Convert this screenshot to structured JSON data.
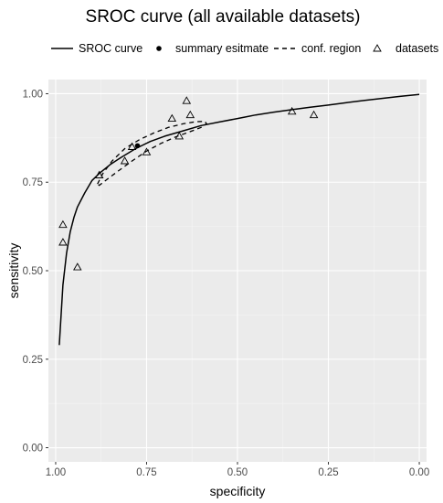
{
  "chart_data": {
    "type": "scatter",
    "title": "SROC curve (all available datasets)",
    "xlabel": "specificity",
    "ylabel": "sensitivity",
    "x_reversed": true,
    "xlim": [
      1.02,
      -0.02
    ],
    "ylim": [
      -0.04,
      1.04
    ],
    "x_ticks": [
      1.0,
      0.75,
      0.5,
      0.25,
      0.0
    ],
    "x_tick_labels": [
      "1.00",
      "0.75",
      "0.50",
      "0.25",
      "0.00"
    ],
    "y_ticks": [
      0.0,
      0.25,
      0.5,
      0.75,
      1.0
    ],
    "y_tick_labels": [
      "0.00",
      "0.25",
      "0.50",
      "0.75",
      "1.00"
    ],
    "grid": true,
    "background": "#ebebeb",
    "legend_position": "top",
    "legend": [
      {
        "label": "SROC curve",
        "key": "solid-line"
      },
      {
        "label": "summary esitmate",
        "key": "filled-circle"
      },
      {
        "label": "conf. region",
        "key": "dashed-line"
      },
      {
        "label": "datasets",
        "key": "open-triangle"
      }
    ],
    "sroc_curve": {
      "specificity": [
        0.99,
        0.98,
        0.97,
        0.96,
        0.95,
        0.94,
        0.92,
        0.9,
        0.88,
        0.85,
        0.82,
        0.78,
        0.74,
        0.7,
        0.65,
        0.6,
        0.55,
        0.5,
        0.45,
        0.4,
        0.35,
        0.3,
        0.25,
        0.2,
        0.15,
        0.1,
        0.05,
        0.0
      ],
      "sensitivity": [
        0.29,
        0.46,
        0.55,
        0.61,
        0.65,
        0.68,
        0.72,
        0.755,
        0.775,
        0.8,
        0.82,
        0.845,
        0.865,
        0.88,
        0.895,
        0.91,
        0.92,
        0.93,
        0.94,
        0.948,
        0.955,
        0.962,
        0.968,
        0.975,
        0.981,
        0.987,
        0.993,
        0.998
      ]
    },
    "summary_estimate": {
      "specificity": 0.775,
      "sensitivity": 0.853
    },
    "confidence_region": {
      "specificity": [
        0.885,
        0.87,
        0.845,
        0.81,
        0.77,
        0.73,
        0.69,
        0.65,
        0.615,
        0.59,
        0.585,
        0.6,
        0.63,
        0.67,
        0.71,
        0.75,
        0.79,
        0.83,
        0.86,
        0.88,
        0.885
      ],
      "sensitivity": [
        0.745,
        0.775,
        0.81,
        0.845,
        0.87,
        0.889,
        0.905,
        0.915,
        0.921,
        0.922,
        0.915,
        0.905,
        0.893,
        0.878,
        0.86,
        0.838,
        0.81,
        0.78,
        0.757,
        0.741,
        0.745
      ]
    },
    "datasets": {
      "specificity": [
        0.98,
        0.98,
        0.94,
        0.88,
        0.81,
        0.79,
        0.75,
        0.68,
        0.66,
        0.64,
        0.63,
        0.35,
        0.29
      ],
      "sensitivity": [
        0.63,
        0.58,
        0.51,
        0.77,
        0.81,
        0.85,
        0.835,
        0.93,
        0.88,
        0.98,
        0.94,
        0.95,
        0.94
      ]
    }
  }
}
